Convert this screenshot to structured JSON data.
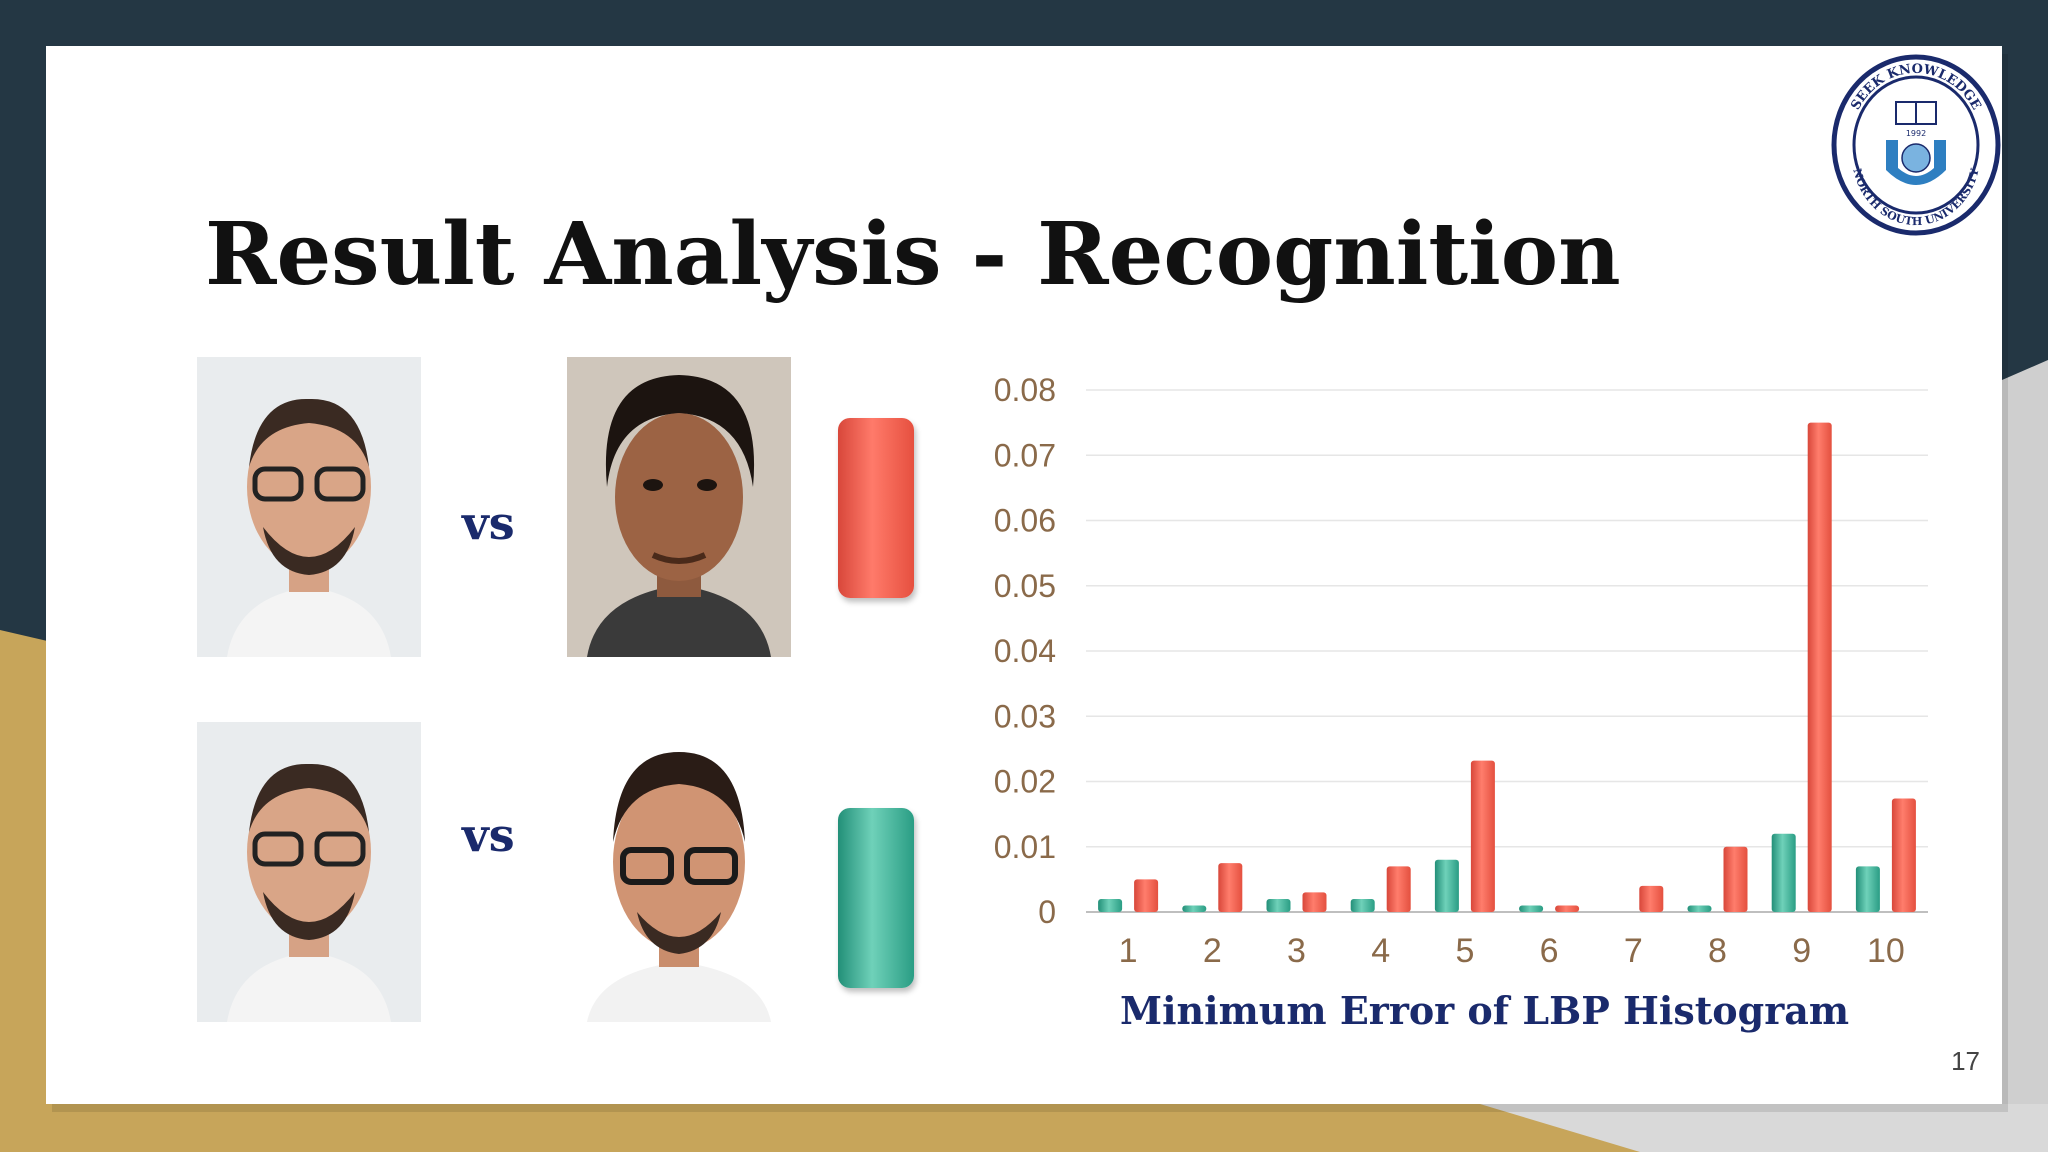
{
  "slide": {
    "title": "Result Analysis - Recognition",
    "page_number": "17",
    "vs_label_top": "vs",
    "vs_label_bottom": "vs"
  },
  "colors": {
    "background_dark": "#243744",
    "accent_gold": "#c7a55a",
    "bar_red": "#ef5a4a",
    "bar_teal": "#3aa58c",
    "label_navy": "#1a2a6c",
    "tick_brown": "#8a6a4a"
  },
  "logo": {
    "text_top": "SEEK KNOWLEDGE",
    "text_bottom": "NORTH SOUTH UNIVERSITY",
    "year": "1992"
  },
  "chart_data": {
    "type": "bar",
    "categories": [
      "1",
      "2",
      "3",
      "4",
      "5",
      "6",
      "7",
      "8",
      "9",
      "10"
    ],
    "series": [
      {
        "color": "#3aa58c",
        "values": [
          0.002,
          0.001,
          0.002,
          0.002,
          0.008,
          0.001,
          0.0,
          0.001,
          0.012,
          0.007
        ]
      },
      {
        "color": "#ef5a4a",
        "values": [
          0.005,
          0.0075,
          0.003,
          0.007,
          0.0232,
          0.001,
          0.004,
          0.01,
          0.075,
          0.0174
        ]
      }
    ],
    "xlabel": "Minimum Error of LBP Histogram",
    "ylabel": "",
    "ylim": [
      0,
      0.08
    ],
    "yticks": [
      "0",
      "0.01",
      "0.02",
      "0.03",
      "0.04",
      "0.05",
      "0.06",
      "0.07",
      "0.08"
    ],
    "grid": true
  }
}
